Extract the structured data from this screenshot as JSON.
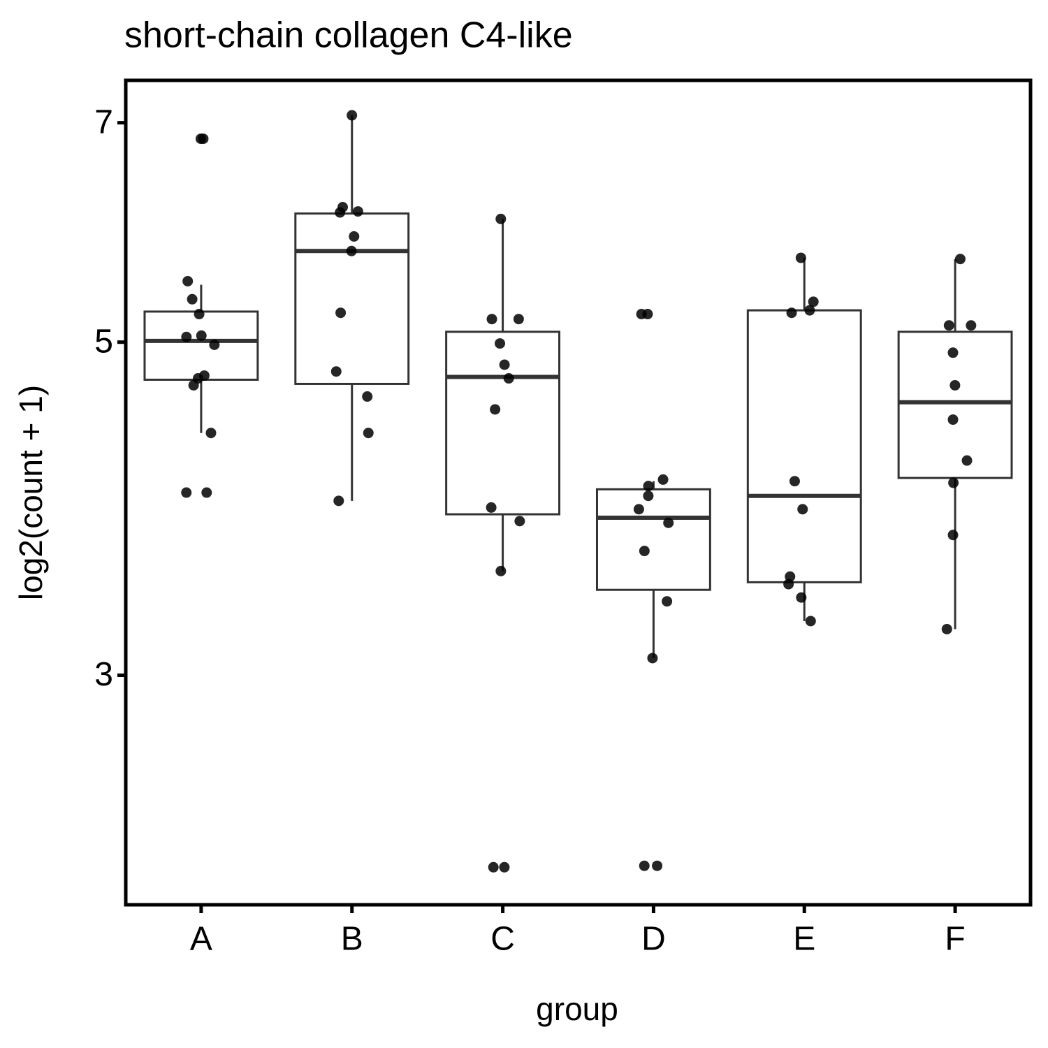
{
  "chart_data": {
    "type": "box",
    "title": "short-chain collagen C4-like",
    "x_label": "group",
    "y_label": "log2(count + 1)",
    "categories": [
      "A",
      "B",
      "C",
      "D",
      "E",
      "F"
    ],
    "boxes": [
      {
        "whisker_low": 4.35,
        "q1": 4.72,
        "median": 5.01,
        "q3": 5.24,
        "whisker_high": 5.46
      },
      {
        "whisker_low": 3.92,
        "q1": 4.69,
        "median": 5.75,
        "q3": 6.09,
        "whisker_high": 7.08
      },
      {
        "whisker_low": 3.52,
        "q1": 3.84,
        "median": 4.74,
        "q3": 5.08,
        "whisker_high": 6.04
      },
      {
        "whisker_low": 3.08,
        "q1": 3.42,
        "median": 3.82,
        "q3": 3.99,
        "whisker_high": 4.04
      },
      {
        "whisker_low": 3.26,
        "q1": 3.46,
        "median": 3.95,
        "q3": 5.25,
        "whisker_high": 5.69
      },
      {
        "whisker_low": 3.22,
        "q1": 4.06,
        "median": 4.56,
        "q3": 5.08,
        "whisker_high": 5.68
      }
    ],
    "points": [
      [
        6.83,
        6.83,
        5.49,
        5.34,
        5.22,
        5.05,
        5.04,
        4.98,
        4.75,
        4.73,
        4.68,
        4.35,
        3.97,
        3.97
      ],
      [
        7.08,
        6.15,
        6.11,
        6.1,
        5.88,
        5.75,
        5.23,
        4.78,
        4.6,
        4.35,
        3.92
      ],
      [
        6.04,
        5.18,
        5.18,
        4.99,
        4.83,
        4.73,
        4.51,
        3.88,
        3.8,
        3.52,
        2.235,
        2.235
      ],
      [
        5.22,
        5.22,
        4.05,
        4.01,
        3.95,
        3.87,
        3.79,
        3.63,
        3.36,
        3.08,
        2.24,
        2.24
      ],
      [
        5.69,
        5.32,
        5.25,
        5.23,
        4.04,
        3.87,
        3.49,
        3.45,
        3.38,
        3.26
      ],
      [
        5.68,
        5.13,
        5.13,
        4.92,
        4.68,
        4.44,
        4.17,
        4.03,
        3.72,
        3.22
      ]
    ],
    "box_color": "#333333",
    "point_color": "#000000",
    "ylim": [
      2.11,
      7.47
    ],
    "yticks": [
      3,
      5,
      7
    ],
    "y_log": true,
    "grid": false
  }
}
